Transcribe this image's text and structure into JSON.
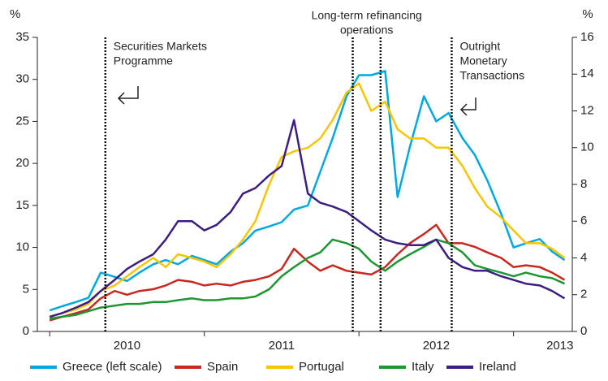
{
  "chart_data": {
    "type": "line",
    "ylabel": "%",
    "y2label": "%",
    "x": [
      2010.0,
      2010.08,
      2010.17,
      2010.25,
      2010.33,
      2010.42,
      2010.5,
      2010.58,
      2010.67,
      2010.75,
      2010.83,
      2010.92,
      2011.0,
      2011.08,
      2011.17,
      2011.25,
      2011.33,
      2011.42,
      2011.5,
      2011.58,
      2011.67,
      2011.75,
      2011.83,
      2011.92,
      2012.0,
      2012.08,
      2012.17,
      2012.25,
      2012.33,
      2012.42,
      2012.5,
      2012.58,
      2012.67,
      2012.75,
      2012.83,
      2012.92,
      2013.0,
      2013.08,
      2013.17,
      2013.25,
      2013.33
    ],
    "xlim": [
      2009.92,
      2013.38
    ],
    "xticks": [
      {
        "value": 2010.5,
        "label": "2010"
      },
      {
        "value": 2011.5,
        "label": "2011"
      },
      {
        "value": 2012.5,
        "label": "2012"
      },
      {
        "value": 2013.3,
        "label": "2013"
      }
    ],
    "xminorticks": [
      2010,
      2011,
      2012,
      2013
    ],
    "ylim": [
      0,
      35
    ],
    "yticks": [
      0,
      5,
      10,
      15,
      20,
      25,
      30,
      35
    ],
    "y2lim": [
      0,
      16
    ],
    "y2ticks": [
      0,
      2,
      4,
      6,
      8,
      10,
      12,
      14,
      16
    ],
    "grid": false,
    "legend": "bottom",
    "series": [
      {
        "name": "Greece (left scale)",
        "color": "#00a8e1",
        "axis": "y",
        "values": [
          2.5,
          3.0,
          3.5,
          4.0,
          7.0,
          6.5,
          6.0,
          7.0,
          8.0,
          8.5,
          8.0,
          9.0,
          8.5,
          8.0,
          9.5,
          10.5,
          12.0,
          12.5,
          13.0,
          14.5,
          15.0,
          19.0,
          23.0,
          28.0,
          30.5,
          30.5,
          31.0,
          16.0,
          22.0,
          28.0,
          25.0,
          26.0,
          23.0,
          21.0,
          18.0,
          14.0,
          10.0,
          10.5,
          11.0,
          9.5,
          8.5
        ]
      },
      {
        "name": "Spain",
        "color": "#c8281e",
        "axis": "y2",
        "values": [
          0.6,
          0.8,
          1.0,
          1.2,
          1.8,
          2.2,
          2.0,
          2.2,
          2.3,
          2.5,
          2.8,
          2.7,
          2.5,
          2.6,
          2.5,
          2.7,
          2.8,
          3.0,
          3.4,
          4.5,
          3.8,
          3.3,
          3.6,
          3.3,
          3.2,
          3.1,
          3.5,
          4.2,
          4.8,
          5.3,
          5.8,
          4.8,
          4.8,
          4.6,
          4.3,
          4.0,
          3.5,
          3.6,
          3.5,
          3.2,
          2.8
        ]
      },
      {
        "name": "Portugal",
        "color": "#f7c600",
        "axis": "y2",
        "values": [
          0.8,
          1.0,
          1.2,
          1.5,
          2.2,
          2.5,
          3.0,
          3.5,
          4.0,
          3.5,
          4.2,
          4.0,
          3.8,
          3.5,
          4.2,
          5.0,
          6.0,
          8.0,
          9.5,
          9.8,
          10.0,
          10.5,
          11.5,
          13.0,
          13.5,
          12.0,
          12.5,
          11.0,
          10.5,
          10.5,
          10.0,
          10.0,
          9.0,
          7.8,
          6.8,
          6.2,
          5.5,
          4.8,
          4.8,
          4.5,
          4.0
        ]
      },
      {
        "name": "Italy",
        "color": "#1e9632",
        "axis": "y2",
        "values": [
          0.7,
          0.8,
          0.9,
          1.1,
          1.3,
          1.4,
          1.5,
          1.5,
          1.6,
          1.6,
          1.7,
          1.8,
          1.7,
          1.7,
          1.8,
          1.8,
          1.9,
          2.3,
          3.0,
          3.5,
          4.0,
          4.3,
          5.0,
          4.8,
          4.5,
          3.8,
          3.3,
          3.8,
          4.2,
          4.6,
          5.0,
          4.8,
          4.3,
          3.6,
          3.4,
          3.2,
          3.0,
          3.2,
          3.0,
          2.9,
          2.6
        ]
      },
      {
        "name": "Ireland",
        "color": "#3c1e82",
        "axis": "y2",
        "values": [
          0.8,
          1.0,
          1.3,
          1.6,
          2.2,
          2.8,
          3.4,
          3.8,
          4.2,
          5.0,
          6.0,
          6.0,
          5.5,
          5.8,
          6.5,
          7.5,
          7.8,
          8.5,
          9.0,
          11.5,
          7.5,
          7.0,
          6.8,
          6.5,
          6.0,
          5.5,
          5.0,
          4.8,
          4.7,
          4.7,
          5.0,
          4.0,
          3.5,
          3.3,
          3.3,
          3.0,
          2.8,
          2.6,
          2.5,
          2.2,
          1.8
        ]
      }
    ],
    "annotations": [
      {
        "x": [
          2010.36
        ],
        "text": [
          "Securities Markets",
          "Programme"
        ]
      },
      {
        "x": [
          2011.96,
          2012.14
        ],
        "text": [
          "Long-term refinancing",
          "operations"
        ]
      },
      {
        "x": [
          2012.6
        ],
        "text": [
          "Outright",
          "Monetary",
          "Transactions"
        ]
      }
    ]
  }
}
